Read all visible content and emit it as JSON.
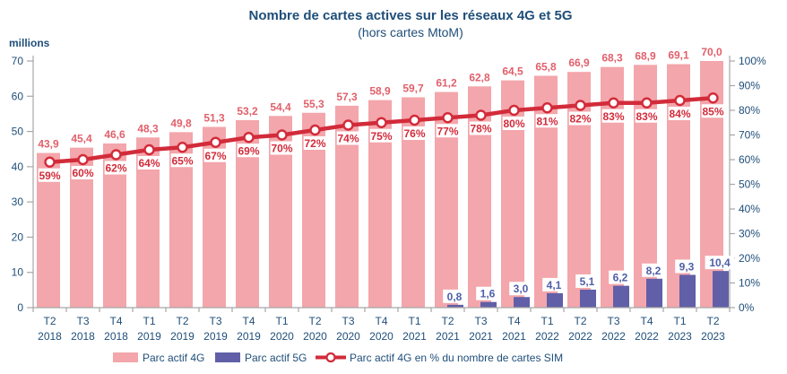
{
  "chart_data": {
    "type": "combo-bar-line",
    "title": "Nombre de cartes actives sur les réseaux 4G et 5G",
    "subtitle": "(hors cartes MtoM)",
    "decimal_separator": ",",
    "categories": [
      {
        "quarter": "T2",
        "year": "2018"
      },
      {
        "quarter": "T3",
        "year": "2018"
      },
      {
        "quarter": "T4",
        "year": "2018"
      },
      {
        "quarter": "T1",
        "year": "2019"
      },
      {
        "quarter": "T2",
        "year": "2019"
      },
      {
        "quarter": "T3",
        "year": "2019"
      },
      {
        "quarter": "T4",
        "year": "2019"
      },
      {
        "quarter": "T1",
        "year": "2020"
      },
      {
        "quarter": "T2",
        "year": "2020"
      },
      {
        "quarter": "T3",
        "year": "2020"
      },
      {
        "quarter": "T4",
        "year": "2020"
      },
      {
        "quarter": "T1",
        "year": "2021"
      },
      {
        "quarter": "T2",
        "year": "2021"
      },
      {
        "quarter": "T3",
        "year": "2021"
      },
      {
        "quarter": "T4",
        "year": "2021"
      },
      {
        "quarter": "T1",
        "year": "2022"
      },
      {
        "quarter": "T2",
        "year": "2022"
      },
      {
        "quarter": "T3",
        "year": "2022"
      },
      {
        "quarter": "T4",
        "year": "2022"
      },
      {
        "quarter": "T1",
        "year": "2023"
      },
      {
        "quarter": "T2",
        "year": "2023"
      }
    ],
    "left_axis": {
      "title": "millions",
      "min": 0,
      "max": 70,
      "step": 10
    },
    "right_axis": {
      "min": 0,
      "max": 100,
      "step": 10,
      "suffix": "%"
    },
    "series": [
      {
        "name": "Parc actif 4G",
        "type": "bar",
        "color": "#F3A6AB",
        "label_color": "#E1606B",
        "values": [
          43.9,
          45.4,
          46.6,
          48.3,
          49.8,
          51.3,
          53.2,
          54.4,
          55.3,
          57.3,
          58.9,
          59.7,
          61.2,
          62.8,
          64.5,
          65.8,
          66.9,
          68.3,
          68.9,
          69.1,
          70.0
        ]
      },
      {
        "name": "Parc actif 5G",
        "type": "bar",
        "color": "#605FA7",
        "label_color": "#4E5FA8",
        "values": [
          null,
          null,
          null,
          null,
          null,
          null,
          null,
          null,
          null,
          null,
          null,
          null,
          0.8,
          1.6,
          3.0,
          4.1,
          5.1,
          6.2,
          8.2,
          9.3,
          10.4
        ]
      },
      {
        "name": "Parc actif 4G en % du nombre de cartes SIM",
        "type": "line",
        "axis": "right",
        "color": "#D22B3A",
        "label_color": "#D22B3A",
        "values": [
          59,
          60,
          62,
          64,
          65,
          67,
          69,
          70,
          72,
          74,
          75,
          76,
          77,
          78,
          80,
          81,
          82,
          83,
          83,
          84,
          85
        ]
      }
    ],
    "colors": {
      "axis_text": "#1F4E79",
      "tick": "#A6A6A6",
      "background": "#FFFFFF"
    },
    "legend_position": "bottom",
    "grid": false
  }
}
